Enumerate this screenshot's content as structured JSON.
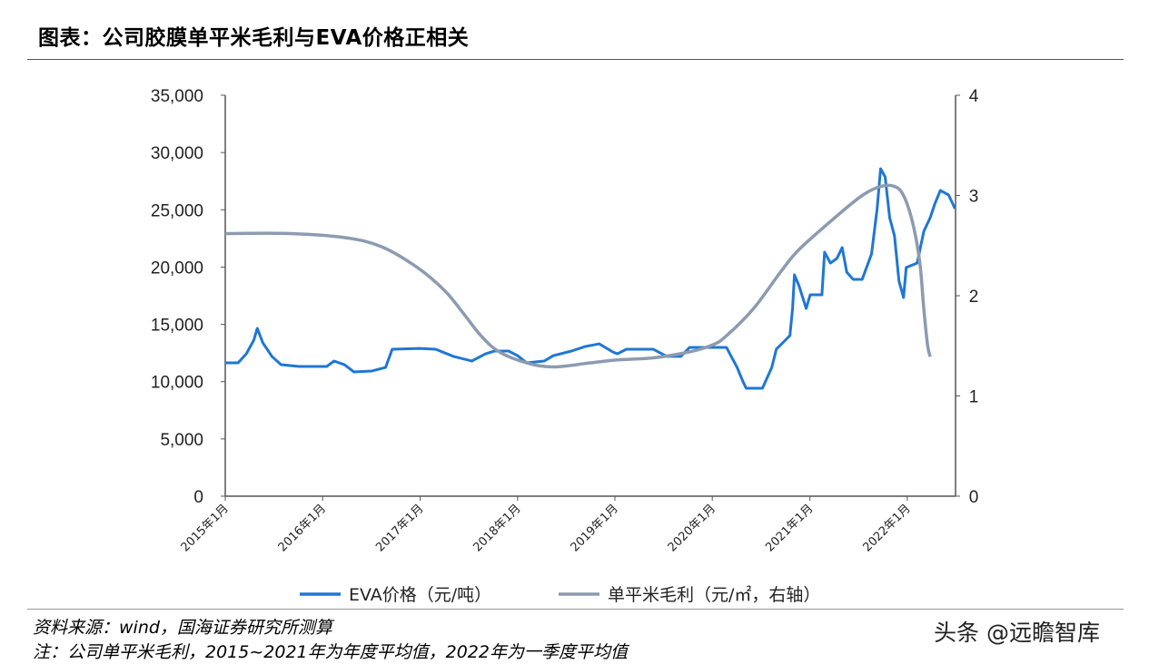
{
  "title": "图表：公司胶膜单平米毛利与EVA价格正相关",
  "notes": {
    "source": "资料来源：wind，国海证券研究所测算",
    "remark": "注：公司单平米毛利，2015~2021年为年度平均值，2022年为一季度平均值"
  },
  "watermark": "头条 @远瞻智库",
  "chart_data": {
    "type": "line",
    "title": "",
    "x_range": [
      "2015-01-01",
      "2022-07-01"
    ],
    "x_ticks": [
      {
        "date": "2015-01-01",
        "label": "2015年1月"
      },
      {
        "date": "2016-01-01",
        "label": "2016年1月"
      },
      {
        "date": "2017-01-01",
        "label": "2017年1月"
      },
      {
        "date": "2018-01-01",
        "label": "2018年1月"
      },
      {
        "date": "2019-01-01",
        "label": "2019年1月"
      },
      {
        "date": "2020-01-01",
        "label": "2020年1月"
      },
      {
        "date": "2021-01-01",
        "label": "2021年1月"
      },
      {
        "date": "2022-01-01",
        "label": "2022年1月"
      }
    ],
    "y_left": {
      "range": [
        0,
        35000
      ],
      "ticks": [
        "0",
        "5,000",
        "10,000",
        "15,000",
        "20,000",
        "25,000",
        "30,000",
        "35,000"
      ],
      "tick_values": [
        0,
        5000,
        10000,
        15000,
        20000,
        25000,
        30000,
        35000
      ]
    },
    "y_right": {
      "range": [
        0,
        4
      ],
      "ticks": [
        "0",
        "1",
        "2",
        "3",
        "4"
      ],
      "tick_values": [
        0,
        1,
        2,
        3,
        4
      ]
    },
    "grid": false,
    "legend_position": "bottom",
    "series": [
      {
        "name": "EVA价格（元/吨）",
        "axis": "left",
        "color": "#1f77d4",
        "points": [
          [
            "2015-01-01",
            11640
          ],
          [
            "2015-02-18",
            11640
          ],
          [
            "2015-03-21",
            12430
          ],
          [
            "2015-04-18",
            13620
          ],
          [
            "2015-05-01",
            14650
          ],
          [
            "2015-05-22",
            13380
          ],
          [
            "2015-06-25",
            12200
          ],
          [
            "2015-07-29",
            11480
          ],
          [
            "2015-10-05",
            11320
          ],
          [
            "2016-01-16",
            11320
          ],
          [
            "2016-02-13",
            11800
          ],
          [
            "2016-03-23",
            11480
          ],
          [
            "2016-04-27",
            10850
          ],
          [
            "2016-07-04",
            10930
          ],
          [
            "2016-08-24",
            11240
          ],
          [
            "2016-09-18",
            12830
          ],
          [
            "2016-12-29",
            12900
          ],
          [
            "2017-02-28",
            12830
          ],
          [
            "2017-05-06",
            12200
          ],
          [
            "2017-07-13",
            11800
          ],
          [
            "2017-09-03",
            12430
          ],
          [
            "2017-10-07",
            12670
          ],
          [
            "2017-11-28",
            12670
          ],
          [
            "2018-01-01",
            12270
          ],
          [
            "2018-02-04",
            11640
          ],
          [
            "2018-04-11",
            11800
          ],
          [
            "2018-05-15",
            12270
          ],
          [
            "2018-07-22",
            12670
          ],
          [
            "2018-09-12",
            13070
          ],
          [
            "2018-11-03",
            13300
          ],
          [
            "2018-12-24",
            12590
          ],
          [
            "2019-01-10",
            12430
          ],
          [
            "2019-02-13",
            12830
          ],
          [
            "2019-05-24",
            12830
          ],
          [
            "2019-07-15",
            12200
          ],
          [
            "2019-09-05",
            12200
          ],
          [
            "2019-10-08",
            12990
          ],
          [
            "2020-01-03",
            12990
          ],
          [
            "2020-02-23",
            12990
          ],
          [
            "2020-04-03",
            11240
          ],
          [
            "2020-04-24",
            10060
          ],
          [
            "2020-05-07",
            9420
          ],
          [
            "2020-07-07",
            9420
          ],
          [
            "2020-08-11",
            11240
          ],
          [
            "2020-08-28",
            12830
          ],
          [
            "2020-10-01",
            13620
          ],
          [
            "2020-10-18",
            14020
          ],
          [
            "2020-10-28",
            16390
          ],
          [
            "2020-11-04",
            19320
          ],
          [
            "2020-11-21",
            18370
          ],
          [
            "2020-12-18",
            16390
          ],
          [
            "2021-01-02",
            17580
          ],
          [
            "2021-02-15",
            17580
          ],
          [
            "2021-02-25",
            21300
          ],
          [
            "2021-03-19",
            20350
          ],
          [
            "2021-04-12",
            20750
          ],
          [
            "2021-05-02",
            21700
          ],
          [
            "2021-05-19",
            19560
          ],
          [
            "2021-06-12",
            18930
          ],
          [
            "2021-07-16",
            18930
          ],
          [
            "2021-08-20",
            21140
          ],
          [
            "2021-09-10",
            25100
          ],
          [
            "2021-09-23",
            28590
          ],
          [
            "2021-10-10",
            27870
          ],
          [
            "2021-10-27",
            24310
          ],
          [
            "2021-11-14",
            22730
          ],
          [
            "2021-12-01",
            18770
          ],
          [
            "2021-12-18",
            17340
          ],
          [
            "2021-12-28",
            19960
          ],
          [
            "2022-02-07",
            20350
          ],
          [
            "2022-03-04",
            23120
          ],
          [
            "2022-03-28",
            24310
          ],
          [
            "2022-04-14",
            25500
          ],
          [
            "2022-05-05",
            26690
          ],
          [
            "2022-06-05",
            26290
          ],
          [
            "2022-06-29",
            25100
          ]
        ]
      },
      {
        "name": "单平米毛利（元/㎡，右轴）",
        "axis": "right",
        "color": "#8c9bb0",
        "points": [
          [
            "2015-01-01",
            2.62
          ],
          [
            "2015-09-02",
            2.62
          ],
          [
            "2016-03-23",
            2.58
          ],
          [
            "2016-08-08",
            2.49
          ],
          [
            "2016-12-22",
            2.28
          ],
          [
            "2017-04-03",
            2.05
          ],
          [
            "2017-06-10",
            1.83
          ],
          [
            "2017-08-17",
            1.6
          ],
          [
            "2017-10-24",
            1.44
          ],
          [
            "2018-02-04",
            1.33
          ],
          [
            "2018-05-15",
            1.29
          ],
          [
            "2018-09-30",
            1.33
          ],
          [
            "2019-01-10",
            1.36
          ],
          [
            "2019-05-24",
            1.38
          ],
          [
            "2019-10-08",
            1.44
          ],
          [
            "2020-01-03",
            1.51
          ],
          [
            "2020-02-23",
            1.6
          ],
          [
            "2020-06-03",
            1.87
          ],
          [
            "2020-09-14",
            2.24
          ],
          [
            "2020-11-21",
            2.46
          ],
          [
            "2021-04-05",
            2.78
          ],
          [
            "2021-07-16",
            3.0
          ],
          [
            "2021-09-23",
            3.09
          ],
          [
            "2021-11-14",
            3.09
          ],
          [
            "2021-12-18",
            3.0
          ],
          [
            "2022-01-21",
            2.73
          ],
          [
            "2022-02-17",
            2.33
          ],
          [
            "2022-03-04",
            1.87
          ],
          [
            "2022-03-18",
            1.51
          ],
          [
            "2022-03-28",
            1.39
          ]
        ]
      }
    ]
  }
}
